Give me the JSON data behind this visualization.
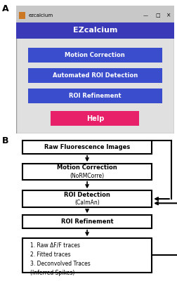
{
  "panel_A_label": "A",
  "panel_B_label": "B",
  "gui_title": "EZcalcium",
  "gui_title_bar": "ezcalcium",
  "gui_bg": "#e0e0e0",
  "gui_titlebar_bg": "#3a3ab8",
  "gui_titlebar_text": "#ffffff",
  "gui_button_bg": "#3a4dcc",
  "gui_button_text": "#ffffff",
  "gui_help_bg": "#e8206a",
  "gui_help_text": "#ffffff",
  "gui_buttons": [
    "Motion Correction",
    "Automated ROI Detection",
    "ROI Refinement"
  ]
}
